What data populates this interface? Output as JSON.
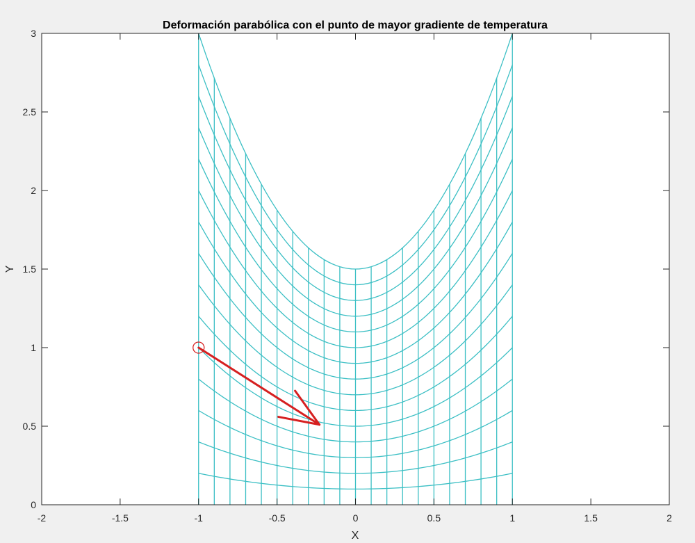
{
  "chart_data": {
    "type": "line",
    "title": "Deformación parabólica con el punto de mayor gradiente de temperatura",
    "xlabel": "X",
    "ylabel": "Y",
    "xlim": [
      -2,
      2
    ],
    "ylim": [
      0,
      3
    ],
    "xticks": [
      -2,
      -1.5,
      -1,
      -0.5,
      0,
      0.5,
      1,
      1.5,
      2
    ],
    "yticks": [
      0,
      0.5,
      1,
      1.5,
      2,
      2.5,
      3
    ],
    "xtick_labels": [
      "-2",
      "-1.5",
      "-1",
      "-0.5",
      "0",
      "0.5",
      "1",
      "1.5",
      "2"
    ],
    "ytick_labels": [
      "0",
      "0.5",
      "1",
      "1.5",
      "2",
      "2.5",
      "3"
    ],
    "grid": false,
    "mesh": {
      "color": "#3bbfc4",
      "x_range": [
        -1,
        1
      ],
      "x_step": 0.1,
      "surface": "y = k * (1 + x^2)",
      "k_values": [
        0,
        0.1,
        0.2,
        0.3,
        0.4,
        0.5,
        0.6,
        0.7,
        0.8,
        0.9,
        1.0,
        1.1,
        1.2,
        1.3,
        1.4,
        1.5
      ],
      "clip_ymax": 3
    },
    "marker": {
      "shape": "circle",
      "x": -1,
      "y": 1,
      "color": "#d62020"
    },
    "arrow": {
      "color": "#d62020",
      "from": [
        -1,
        1
      ],
      "to": [
        -0.23,
        0.51
      ]
    }
  }
}
